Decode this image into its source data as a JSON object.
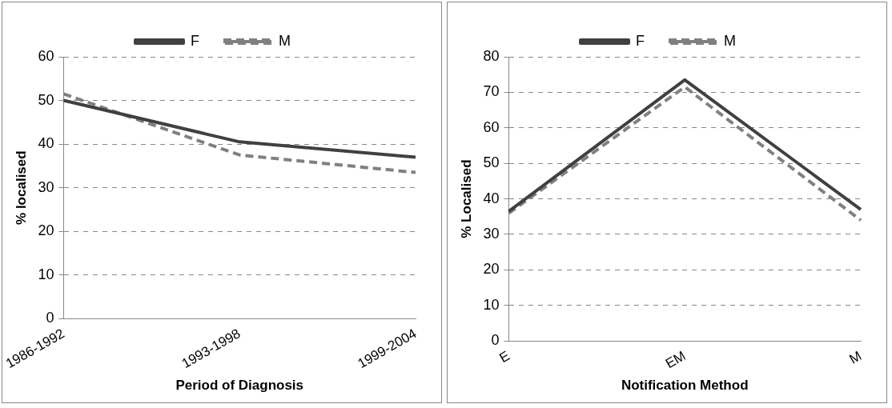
{
  "chart_data": [
    {
      "type": "line",
      "xlabel": "Period of Diagnosis",
      "ylabel": "% localised",
      "categories": [
        "1986-1992",
        "1993-1998",
        "1999-2004"
      ],
      "series": [
        {
          "name": "F",
          "color": "#404040",
          "line_style": "solid",
          "values": [
            50,
            40.5,
            37
          ]
        },
        {
          "name": "M",
          "color": "#808080",
          "line_style": "dashed",
          "values": [
            51.5,
            37.5,
            33.5
          ]
        }
      ],
      "ylim": [
        0,
        60
      ],
      "yticks": [
        0,
        10,
        20,
        30,
        40,
        50,
        60
      ],
      "grid": "y",
      "legend": "top",
      "marker": "none"
    },
    {
      "type": "line",
      "xlabel": "Notification Method",
      "ylabel": "% Localised",
      "categories": [
        "E",
        "EM",
        "M"
      ],
      "series": [
        {
          "name": "F",
          "color": "#404040",
          "line_style": "solid",
          "values": [
            36.5,
            73.5,
            37
          ]
        },
        {
          "name": "M",
          "color": "#808080",
          "line_style": "dashed",
          "values": [
            36,
            71.5,
            34
          ]
        }
      ],
      "ylim": [
        0,
        80
      ],
      "yticks": [
        0,
        10,
        20,
        30,
        40,
        50,
        60,
        70,
        80
      ],
      "grid": "y",
      "legend": "top",
      "marker": "none"
    }
  ]
}
